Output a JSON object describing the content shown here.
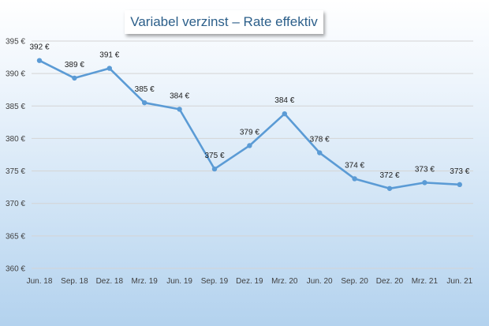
{
  "chart_data": {
    "type": "line",
    "title": "Variabel verzinst – Rate effektiv",
    "xlabel": "",
    "ylabel": "",
    "ylim": [
      360,
      395
    ],
    "y_ticks": [
      "360 €",
      "365 €",
      "370 €",
      "375 €",
      "380 €",
      "385 €",
      "390 €",
      "395 €"
    ],
    "x_ticks": [
      "Jun. 18",
      "Sep. 18",
      "Dez. 18",
      "Mrz. 19",
      "Jun. 19",
      "Sep. 19",
      "Dez. 19",
      "Mrz. 20",
      "Jun. 20",
      "Sep. 20",
      "Dez. 20",
      "Mrz. 21",
      "Jun. 21"
    ],
    "grid": true,
    "line_color": "#5b9bd5",
    "series": [
      {
        "values": [
          392.0,
          389.3,
          390.8,
          385.5,
          384.5,
          375.3,
          378.9,
          383.8,
          377.8,
          373.8,
          372.3,
          373.2,
          372.9
        ],
        "labels": [
          "392 €",
          "389 €",
          "391 €",
          "385 €",
          "384 €",
          "375 €",
          "379 €",
          "384 €",
          "378 €",
          "374 €",
          "372 €",
          "373 €",
          "373 €"
        ]
      }
    ]
  }
}
